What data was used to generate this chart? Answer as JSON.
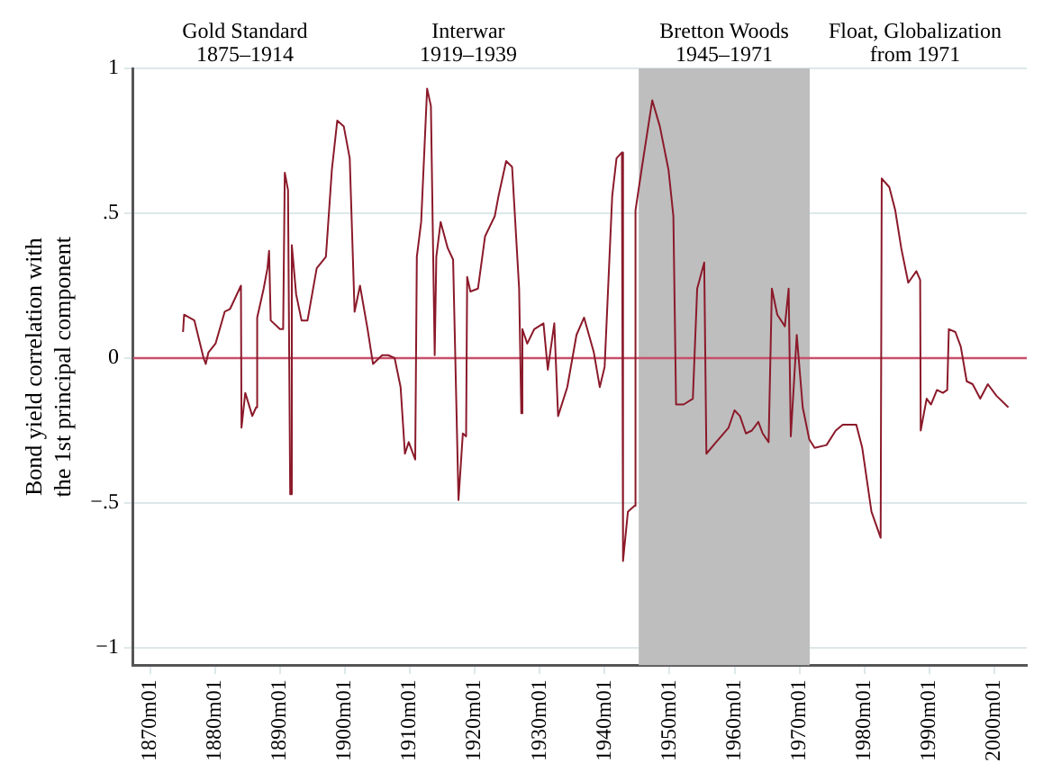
{
  "chart_data": {
    "type": "line",
    "ylabel": "Bond yield correlation with\nthe 1st principal component",
    "x": [
      "1875-02",
      "1875-04",
      "1876-11",
      "1878-04",
      "1878-08",
      "1879-01",
      "1880-02",
      "1881-07",
      "1882-05",
      "1884-01",
      "1884-02",
      "1884-09",
      "1885-10",
      "1886-05",
      "1886-07",
      "1887-07",
      "1888-02",
      "1888-05",
      "1888-08",
      "1890-01",
      "1890-07",
      "1890-10",
      "1891-04",
      "1891-08",
      "1891-11",
      "1892-07",
      "1893-05",
      "1894-04",
      "1895-09",
      "1897-02",
      "1898-01",
      "1898-11",
      "1899-11",
      "1900-10",
      "1901-07",
      "1902-05",
      "1903-07",
      "1904-05",
      "1905-10",
      "1906-09",
      "1907-09",
      "1908-08",
      "1909-04",
      "1909-11",
      "1910-11",
      "1911-02",
      "1911-10",
      "1912-09",
      "1913-04",
      "1913-11",
      "1914-02",
      "1914-10",
      "1915-11",
      "1916-09",
      "1917-07",
      "1918-03",
      "1918-09",
      "1918-11",
      "1919-05",
      "1920-07",
      "1921-08",
      "1923-02",
      "1923-09",
      "1924-11",
      "1925-10",
      "1926-11",
      "1927-03",
      "1927-05",
      "1928-02",
      "1929-03",
      "1930-08",
      "1931-04",
      "1932-04",
      "1932-11",
      "1934-04",
      "1935-09",
      "1936-11",
      "1938-05",
      "1939-04",
      "1940-01",
      "1941-03",
      "1941-11",
      "1942-09",
      "1942-11",
      "1943-08",
      "1944-08",
      "1944-10",
      "1945-10",
      "1947-05",
      "1948-07",
      "1949-11",
      "1950-08",
      "1951-01",
      "1952-03",
      "1953-08",
      "1954-04",
      "1955-05",
      "1955-09",
      "1957-03",
      "1959-02",
      "1960-01",
      "1960-11",
      "1961-10",
      "1962-09",
      "1963-09",
      "1964-05",
      "1965-04",
      "1965-10",
      "1966-08",
      "1967-10",
      "1968-05",
      "1968-09",
      "1969-08",
      "1970-07",
      "1971-07",
      "1972-05",
      "1974-03",
      "1975-08",
      "1976-09",
      "1978-10",
      "1979-09",
      "1981-02",
      "1982-07",
      "1982-09",
      "1983-11",
      "1984-10",
      "1985-09",
      "1986-10",
      "1988-01",
      "1988-08",
      "1988-09",
      "1989-08",
      "1990-04",
      "1991-03",
      "1992-02",
      "1992-10",
      "1993-01",
      "1994-01",
      "1994-11",
      "1995-10",
      "1996-09",
      "1997-11",
      "1999-01",
      "2000-05",
      "2002-03"
    ],
    "series": [
      {
        "color": "#8b1a2a",
        "values": [
          0.09,
          0.15,
          0.13,
          0.0,
          -0.02,
          0.02,
          0.05,
          0.16,
          0.17,
          0.25,
          -0.24,
          -0.12,
          -0.2,
          -0.17,
          0.14,
          0.24,
          0.31,
          0.37,
          0.13,
          0.1,
          0.1,
          0.64,
          0.58,
          -0.47,
          0.39,
          0.22,
          0.13,
          0.13,
          0.31,
          0.35,
          0.65,
          0.82,
          0.8,
          0.69,
          0.16,
          0.25,
          0.1,
          -0.02,
          0.01,
          0.01,
          0.0,
          -0.1,
          -0.33,
          -0.29,
          -0.35,
          0.35,
          0.47,
          0.93,
          0.87,
          0.01,
          0.35,
          0.47,
          0.38,
          0.34,
          -0.49,
          -0.26,
          -0.27,
          0.28,
          0.23,
          0.24,
          0.42,
          0.49,
          0.56,
          0.68,
          0.66,
          0.24,
          -0.19,
          0.1,
          0.05,
          0.1,
          0.12,
          -0.04,
          0.12,
          -0.2,
          -0.1,
          0.08,
          0.14,
          0.02,
          -0.1,
          -0.03,
          0.56,
          0.69,
          0.71,
          -0.7,
          -0.53,
          -0.51,
          0.51,
          0.66,
          0.89,
          0.8,
          0.65,
          0.49,
          -0.16,
          -0.16,
          -0.14,
          0.24,
          0.33,
          -0.33,
          -0.29,
          -0.24,
          -0.18,
          -0.2,
          -0.26,
          -0.25,
          -0.22,
          -0.26,
          -0.29,
          0.24,
          0.15,
          0.11,
          0.24,
          -0.27,
          0.08,
          -0.17,
          -0.28,
          -0.31,
          -0.3,
          -0.25,
          -0.23,
          -0.23,
          -0.31,
          -0.53,
          -0.62,
          0.62,
          0.59,
          0.51,
          0.38,
          0.26,
          0.3,
          0.27,
          -0.25,
          -0.14,
          -0.16,
          -0.11,
          -0.12,
          -0.11,
          0.1,
          0.09,
          0.04,
          -0.08,
          -0.09,
          -0.14,
          -0.09,
          -0.13,
          -0.17
        ]
      }
    ],
    "xlim": [
      "1867-06",
      "2005-01"
    ],
    "xticks": [
      {
        "value": "1870-01",
        "label": "1870m01"
      },
      {
        "value": "1880-01",
        "label": "1880m01"
      },
      {
        "value": "1890-01",
        "label": "1890m01"
      },
      {
        "value": "1900-01",
        "label": "1900m01"
      },
      {
        "value": "1910-01",
        "label": "1910m01"
      },
      {
        "value": "1920-01",
        "label": "1920m01"
      },
      {
        "value": "1930-01",
        "label": "1930m01"
      },
      {
        "value": "1940-01",
        "label": "1940m01"
      },
      {
        "value": "1950-01",
        "label": "1950m01"
      },
      {
        "value": "1960-01",
        "label": "1960m01"
      },
      {
        "value": "1970-01",
        "label": "1970m01"
      },
      {
        "value": "1980-01",
        "label": "1980m01"
      },
      {
        "value": "1990-01",
        "label": "1990m01"
      },
      {
        "value": "2000-01",
        "label": "2000m01"
      }
    ],
    "ylim": [
      -1.06,
      1.0
    ],
    "yticks": [
      {
        "value": -1,
        "label": "−1"
      },
      {
        "value": -0.5,
        "label": "−.5"
      },
      {
        "value": 0,
        "label": "0"
      },
      {
        "value": 0.5,
        "label": ".5"
      },
      {
        "value": 1,
        "label": "1"
      }
    ],
    "grid": "y",
    "marker": "none",
    "line_style": "solid",
    "ref_lines": [
      {
        "axis": "y",
        "value": 0,
        "color": "#c8506a"
      }
    ],
    "bands": [
      {
        "axis": "x",
        "from": "1945-04",
        "to": "1971-08",
        "label": "Bretton Woods\n1945–1971",
        "color": "#bebebe"
      }
    ],
    "annotations": [
      "Gold Standard\n1875–1914",
      "Interwar\n1919–1939",
      "Float, Globalization\nfrom 1971"
    ]
  }
}
